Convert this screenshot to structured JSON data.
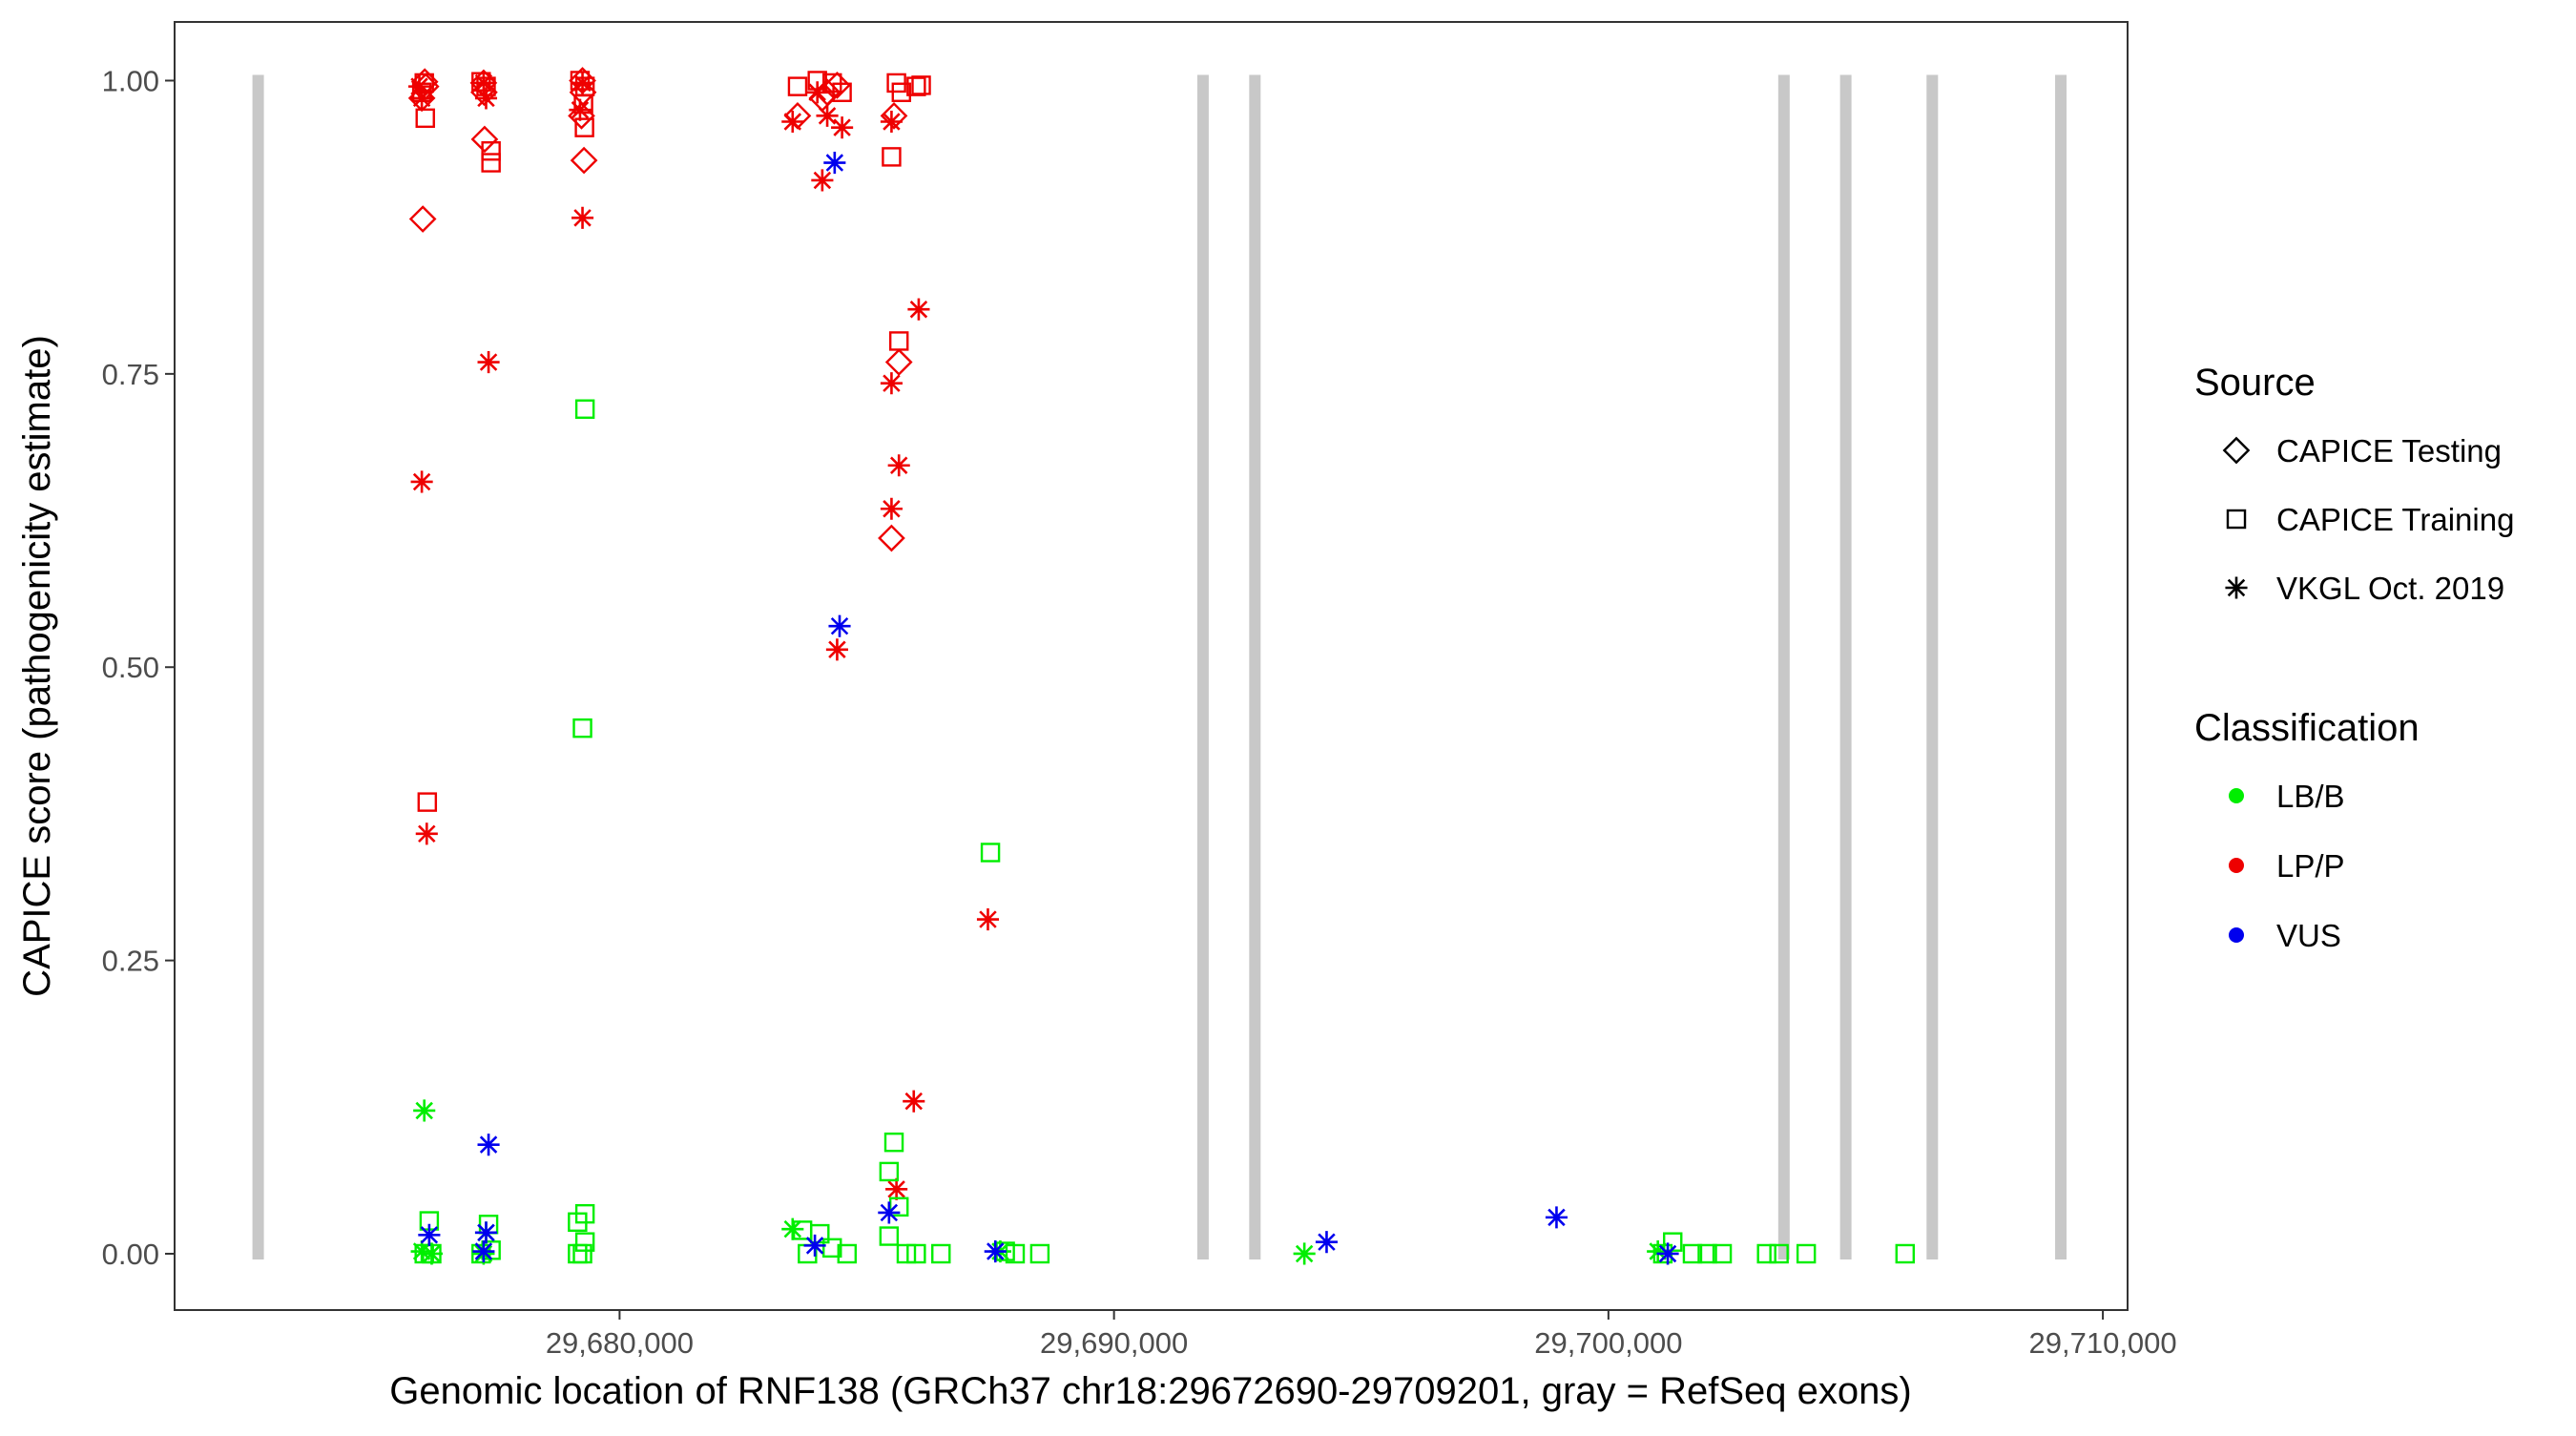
{
  "chart_data": {
    "type": "scatter",
    "title": "",
    "xlabel": "Genomic location of RNF138 (GRCh37 chr18:29672690-29709201, gray = RefSeq exons)",
    "ylabel": "CAPICE score (pathogenicity estimate)",
    "xlim": [
      29671000,
      29710500
    ],
    "ylim": [
      -0.048,
      1.05
    ],
    "x_ticks": [
      29680000,
      29690000,
      29700000,
      29710000
    ],
    "x_tick_labels": [
      "29,680,000",
      "29,690,000",
      "29,700,000",
      "29,710,000"
    ],
    "y_ticks": [
      0,
      0.25,
      0.5,
      0.75,
      1.0
    ],
    "y_tick_labels": [
      "0.00",
      "0.25",
      "0.50",
      "0.75",
      "1.00"
    ],
    "grid": false,
    "legend_position": "right",
    "exons": [
      29672690,
      29691800,
      29692850,
      29703550,
      29704800,
      29706550,
      29709150
    ],
    "colors": {
      "exon": "#c8c8c8",
      "LB/B": "#00ee00",
      "LP/P": "#ee0000",
      "VUS": "#0000ee"
    },
    "legend_source": {
      "title": "Source",
      "items": [
        {
          "label": "CAPICE Testing",
          "shape": "diamond"
        },
        {
          "label": "CAPICE Training",
          "shape": "square"
        },
        {
          "label": "VKGL Oct. 2019",
          "shape": "star"
        }
      ]
    },
    "legend_classification": {
      "title": "Classification",
      "items": [
        {
          "label": "LB/B",
          "color": "#00ee00"
        },
        {
          "label": "LP/P",
          "color": "#ee0000"
        },
        {
          "label": "VUS",
          "color": "#0000ee"
        }
      ]
    },
    "series": [
      {
        "source": "CAPICE Testing",
        "shape": "diamond",
        "classification": "LP/P",
        "points": [
          [
            29676060,
            0.999
          ],
          [
            29676080,
            0.995
          ],
          [
            29676000,
            0.985
          ],
          [
            29676020,
            0.882
          ],
          [
            29677250,
            0.998
          ],
          [
            29677260,
            0.99
          ],
          [
            29677270,
            0.95
          ],
          [
            29679250,
            1.0
          ],
          [
            29679260,
            0.99
          ],
          [
            29679230,
            0.97
          ],
          [
            29679280,
            0.932
          ],
          [
            29683600,
            0.97
          ],
          [
            29684100,
            0.985
          ],
          [
            29684200,
            0.99
          ],
          [
            29684400,
            0.996
          ],
          [
            29685550,
            0.97
          ],
          [
            29685650,
            0.76
          ],
          [
            29685500,
            0.61
          ]
        ]
      },
      {
        "source": "CAPICE Training",
        "shape": "square",
        "classification": "LP/P",
        "points": [
          [
            29676050,
            0.998
          ],
          [
            29676000,
            0.99
          ],
          [
            29676070,
            0.968
          ],
          [
            29676110,
            0.385
          ],
          [
            29677200,
            0.999
          ],
          [
            29677300,
            0.995
          ],
          [
            29677400,
            0.94
          ],
          [
            29677400,
            0.93
          ],
          [
            29679200,
            1.0
          ],
          [
            29679300,
            0.995
          ],
          [
            29679270,
            0.98
          ],
          [
            29679290,
            0.96
          ],
          [
            29683600,
            0.995
          ],
          [
            29684000,
            1.0
          ],
          [
            29684300,
            0.998
          ],
          [
            29684500,
            0.99
          ],
          [
            29685600,
            0.998
          ],
          [
            29685700,
            0.99
          ],
          [
            29686000,
            0.995
          ],
          [
            29686100,
            0.996
          ],
          [
            29685500,
            0.935
          ],
          [
            29685650,
            0.778
          ]
        ]
      },
      {
        "source": "VKGL Oct. 2019",
        "shape": "star",
        "classification": "LP/P",
        "points": [
          [
            29675950,
            0.995
          ],
          [
            29676000,
            0.985
          ],
          [
            29676000,
            0.658
          ],
          [
            29676100,
            0.358
          ],
          [
            29677250,
            0.998
          ],
          [
            29677300,
            0.985
          ],
          [
            29677350,
            0.76
          ],
          [
            29679250,
            0.998
          ],
          [
            29679200,
            0.975
          ],
          [
            29679250,
            0.883
          ],
          [
            29683500,
            0.965
          ],
          [
            29684000,
            0.99
          ],
          [
            29684200,
            0.97
          ],
          [
            29684100,
            0.915
          ],
          [
            29684400,
            0.515
          ],
          [
            29684500,
            0.96
          ],
          [
            29685500,
            0.965
          ],
          [
            29685500,
            0.742
          ],
          [
            29685650,
            0.672
          ],
          [
            29685500,
            0.635
          ],
          [
            29686050,
            0.805
          ],
          [
            29685600,
            0.055
          ],
          [
            29685950,
            0.13
          ],
          [
            29687450,
            0.285
          ]
        ]
      },
      {
        "source": "CAPICE Training",
        "shape": "square",
        "classification": "LB/B",
        "points": [
          [
            29676050,
            0.0
          ],
          [
            29676200,
            0.0
          ],
          [
            29676150,
            0.028
          ],
          [
            29677200,
            0.0
          ],
          [
            29677350,
            0.025
          ],
          [
            29677400,
            0.003
          ],
          [
            29679150,
            0.0
          ],
          [
            29679250,
            0.0
          ],
          [
            29679300,
            0.72
          ],
          [
            29679250,
            0.448
          ],
          [
            29679300,
            0.034
          ],
          [
            29679150,
            0.027
          ],
          [
            29679300,
            0.01
          ],
          [
            29683700,
            0.02
          ],
          [
            29683800,
            0.0
          ],
          [
            29684050,
            0.017
          ],
          [
            29684300,
            0.005
          ],
          [
            29684600,
            0.0
          ],
          [
            29685450,
            0.07
          ],
          [
            29685550,
            0.095
          ],
          [
            29685650,
            0.04
          ],
          [
            29685450,
            0.015
          ],
          [
            29685800,
            0.0
          ],
          [
            29686000,
            0.0
          ],
          [
            29686500,
            0.0
          ],
          [
            29687500,
            0.342
          ],
          [
            29687800,
            0.002
          ],
          [
            29688000,
            0.0
          ],
          [
            29688500,
            0.0
          ],
          [
            29701100,
            0.0
          ],
          [
            29701300,
            0.01
          ],
          [
            29701700,
            0.0
          ],
          [
            29702000,
            0.0
          ],
          [
            29702300,
            0.0
          ],
          [
            29703200,
            0.0
          ],
          [
            29703450,
            0.0
          ],
          [
            29704000,
            0.0
          ],
          [
            29706000,
            0.0
          ]
        ]
      },
      {
        "source": "VKGL Oct. 2019",
        "shape": "star",
        "classification": "LB/B",
        "points": [
          [
            29676050,
            0.122
          ],
          [
            29676000,
            0.002
          ],
          [
            29676200,
            0.0
          ],
          [
            29677250,
            0.0
          ],
          [
            29677300,
            0.018
          ],
          [
            29683500,
            0.021
          ],
          [
            29693850,
            0.0
          ],
          [
            29701000,
            0.002
          ],
          [
            29687700,
            0.002
          ]
        ]
      },
      {
        "source": "VKGL Oct. 2019",
        "shape": "star",
        "classification": "VUS",
        "points": [
          [
            29684350,
            0.93
          ],
          [
            29684450,
            0.535
          ],
          [
            29677350,
            0.093
          ],
          [
            29676150,
            0.016
          ],
          [
            29677300,
            0.018
          ],
          [
            29677250,
            0.002
          ],
          [
            29683950,
            0.007
          ],
          [
            29685450,
            0.035
          ],
          [
            29687600,
            0.002
          ],
          [
            29694300,
            0.01
          ],
          [
            29698950,
            0.031
          ],
          [
            29701200,
            0.0
          ]
        ]
      }
    ]
  }
}
